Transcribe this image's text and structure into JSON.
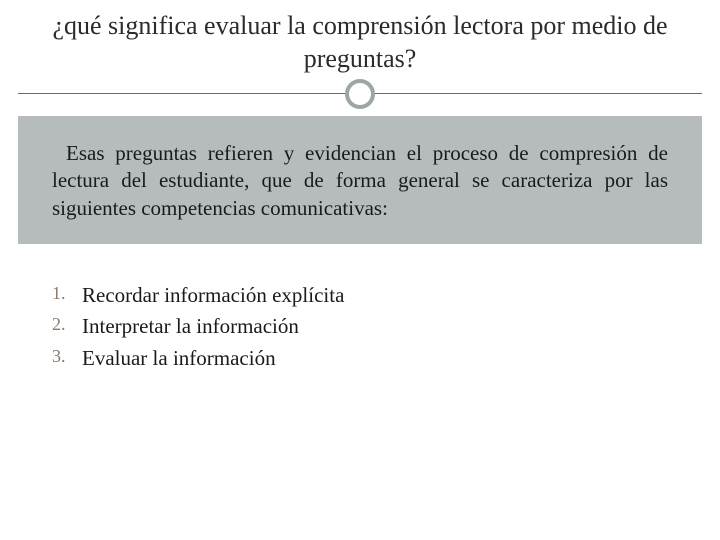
{
  "slide": {
    "title": "¿qué significa evaluar la comprensión lectora por medio de preguntas?",
    "paragraph": "Esas preguntas refieren y evidencian el proceso de compresión de lectura del estudiante, que de forma general se caracteriza por las siguientes competencias comunicativas:",
    "list": [
      "Recordar información explícita",
      "Interpretar la información",
      "Evaluar la información"
    ]
  },
  "style": {
    "background_color": "#ffffff",
    "body_box_bg": "#b6bcbe",
    "title_color": "#2b2b2b",
    "title_fontsize": 26,
    "text_color": "#1a1a1a",
    "text_fontsize": 21,
    "list_number_color": "#8e776b",
    "divider_color": "#6b6b6b",
    "circle_border_color": "#9da6a0",
    "font_family": "Georgia, Times New Roman, serif"
  }
}
